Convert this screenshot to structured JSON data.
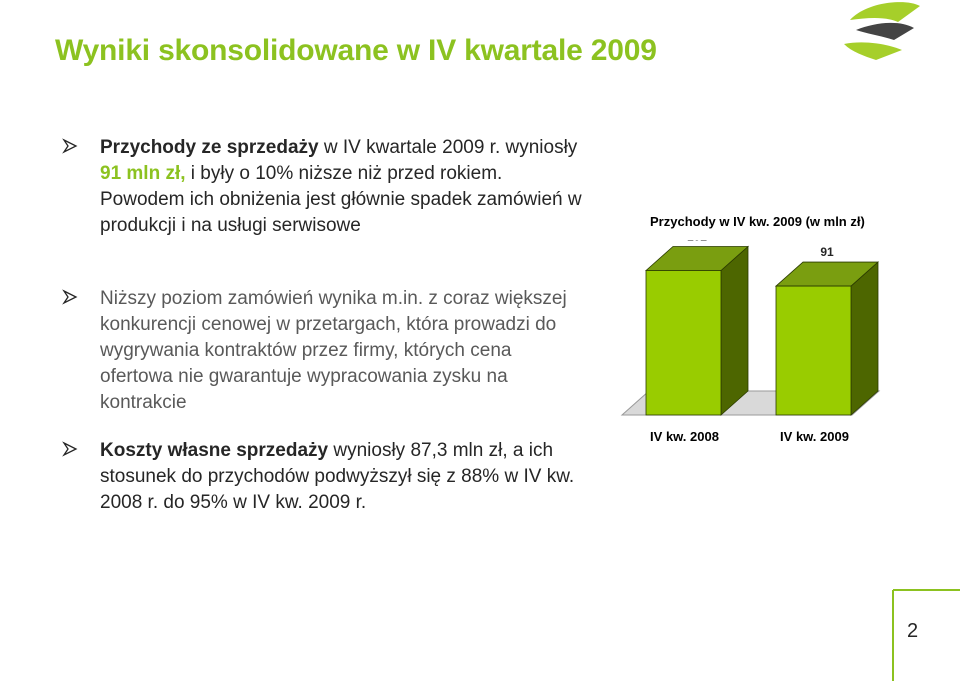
{
  "header": {
    "title": "Wyniki skonsolidowane w IV kwartale 2009"
  },
  "bullets": [
    {
      "bold_lead": "Przychody ze sprzedaży",
      "part1": " w IV kwartale 2009 r. wyniosły ",
      "highlight": "91 mln zł,",
      "part2": " i były o 10% niższe niż przed rokiem. Powodem ich obniżenia jest głównie spadek zamówień w produkcji i na usługi serwisowe"
    },
    {
      "text": "Niższy poziom zamówień wynika m.in. z coraz większej konkurencji cenowej w przetargach, która prowadzi do wygrywania kontraktów przez firmy, których cena ofertowa nie gwarantuje wypracowania zysku na kontrakcie"
    },
    {
      "bold_lead": "Koszty własne sprzedaży",
      "text": " wyniosły 87,3 mln zł, a ich stosunek do przychodów podwyższył się z 88% w IV kw. 2008 r. do 95% w IV kw. 2009 r."
    }
  ],
  "chart_data": {
    "type": "bar",
    "title": "Przychody w IV kw. 2009 (w mln zł)",
    "categories": [
      "IV kw. 2008",
      "IV kw. 2009"
    ],
    "values": [
      102,
      91
    ],
    "data_labels": [
      "102",
      "91"
    ],
    "ylim": [
      0,
      120
    ],
    "grid": false,
    "colors": {
      "bar_front": "#99cc00",
      "bar_side": "#4d6600",
      "bar_top": "#7a9e10",
      "floor": "#d9d9d9"
    }
  },
  "footer": {
    "page_number": "2"
  },
  "colors": {
    "accent": "#8cc220",
    "text": "#595959"
  }
}
